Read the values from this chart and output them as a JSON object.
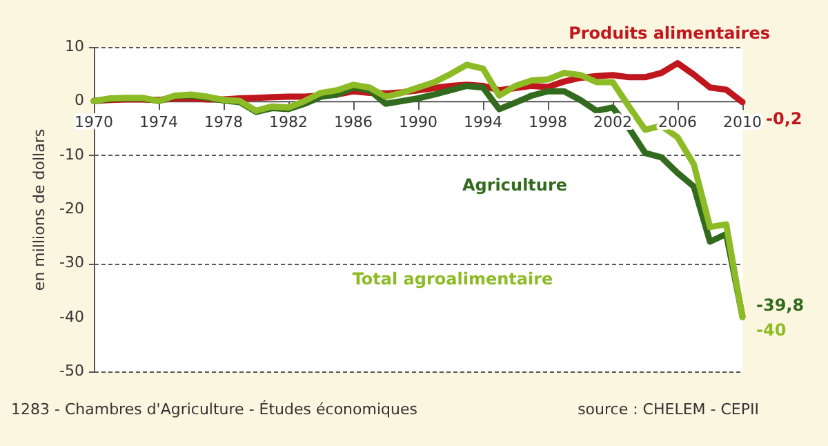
{
  "chart_data": {
    "type": "line",
    "x": [
      1970,
      1971,
      1972,
      1973,
      1974,
      1975,
      1976,
      1977,
      1978,
      1979,
      1980,
      1981,
      1982,
      1983,
      1984,
      1985,
      1986,
      1987,
      1988,
      1989,
      1990,
      1991,
      1992,
      1993,
      1994,
      1995,
      1996,
      1997,
      1998,
      1999,
      2000,
      2001,
      2002,
      2003,
      2004,
      2005,
      2006,
      2007,
      2008,
      2009,
      2010
    ],
    "series": [
      {
        "name": "Produits alimentaires",
        "color": "#c0161d",
        "values": [
          0,
          0.2,
          0.3,
          0.3,
          0.2,
          0.5,
          0.5,
          0.3,
          0.3,
          0.5,
          0.6,
          0.7,
          0.8,
          0.8,
          1.0,
          1.2,
          1.8,
          1.5,
          1.4,
          1.6,
          2.0,
          2.4,
          2.8,
          3.0,
          2.8,
          2.0,
          2.4,
          2.8,
          2.6,
          3.6,
          4.3,
          4.6,
          4.8,
          4.4,
          4.4,
          5.2,
          7.0,
          4.9,
          2.5,
          2.1,
          -0.2
        ],
        "value_labels": [
          null,
          null,
          null,
          null,
          null,
          null,
          null,
          null,
          null,
          null,
          null,
          null,
          null,
          null,
          null,
          null,
          null,
          null,
          null,
          null,
          null,
          null,
          null,
          null,
          null,
          null,
          null,
          null,
          null,
          null,
          null,
          null,
          null,
          null,
          null,
          null,
          null,
          null,
          null,
          null,
          "-0,2"
        ]
      },
      {
        "name": "Agriculture",
        "color": "#336b1e",
        "values": [
          0,
          0.4,
          0.5,
          0.5,
          0,
          0.9,
          1.0,
          0.6,
          0.1,
          -0.2,
          -2.0,
          -1.3,
          -1.5,
          -0.5,
          0.8,
          1.2,
          2.5,
          2.0,
          -0.5,
          0,
          0.5,
          1.2,
          2.0,
          2.8,
          2.5,
          -1.5,
          -0.3,
          1.0,
          1.8,
          1.8,
          0.2,
          -1.8,
          -1.2,
          -5.0,
          -9.6,
          -10.4,
          -13.3,
          -15.8,
          -26.0,
          -24.6,
          -39.8
        ],
        "value_labels": [
          null,
          null,
          null,
          null,
          null,
          null,
          null,
          null,
          null,
          null,
          null,
          null,
          null,
          null,
          null,
          null,
          null,
          null,
          null,
          null,
          null,
          null,
          null,
          null,
          null,
          null,
          null,
          null,
          null,
          null,
          null,
          null,
          null,
          null,
          null,
          null,
          null,
          null,
          null,
          null,
          "-39,8"
        ]
      },
      {
        "name": "Total agroalimentaire",
        "color": "#8dbb25",
        "values": [
          0,
          0.5,
          0.6,
          0.6,
          0,
          1.0,
          1.2,
          0.8,
          0.2,
          0,
          -1.8,
          -1.0,
          -1.2,
          0,
          1.5,
          2.0,
          3.0,
          2.5,
          0.8,
          1.5,
          2.5,
          3.5,
          5.0,
          6.7,
          6.0,
          1.0,
          2.8,
          3.8,
          4.0,
          5.2,
          4.8,
          3.5,
          3.5,
          -1.0,
          -5.3,
          -4.6,
          -6.7,
          -11.7,
          -23.3,
          -22.8,
          -40
        ],
        "value_labels": [
          null,
          null,
          null,
          null,
          null,
          null,
          null,
          null,
          null,
          null,
          null,
          null,
          null,
          null,
          null,
          null,
          null,
          null,
          null,
          null,
          null,
          null,
          null,
          null,
          null,
          null,
          null,
          null,
          null,
          null,
          null,
          null,
          null,
          null,
          null,
          null,
          null,
          null,
          null,
          null,
          "-40"
        ]
      }
    ],
    "xlim": [
      1970,
      2010
    ],
    "xticks": [
      1970,
      1974,
      1978,
      1982,
      1986,
      1990,
      1994,
      1998,
      2002,
      2006,
      2010
    ],
    "ylim": [
      -50,
      10
    ],
    "yticks": [
      -50,
      -40,
      -30,
      -20,
      -10,
      0,
      10
    ],
    "ylabel": "en millions de dollars",
    "grid": "y",
    "legend": false,
    "marker": "none",
    "line_style": "solid",
    "annotations": [
      "1283 - Chambres d'Agriculture - Études économiques",
      "source : CHELEM - CEPII"
    ]
  }
}
